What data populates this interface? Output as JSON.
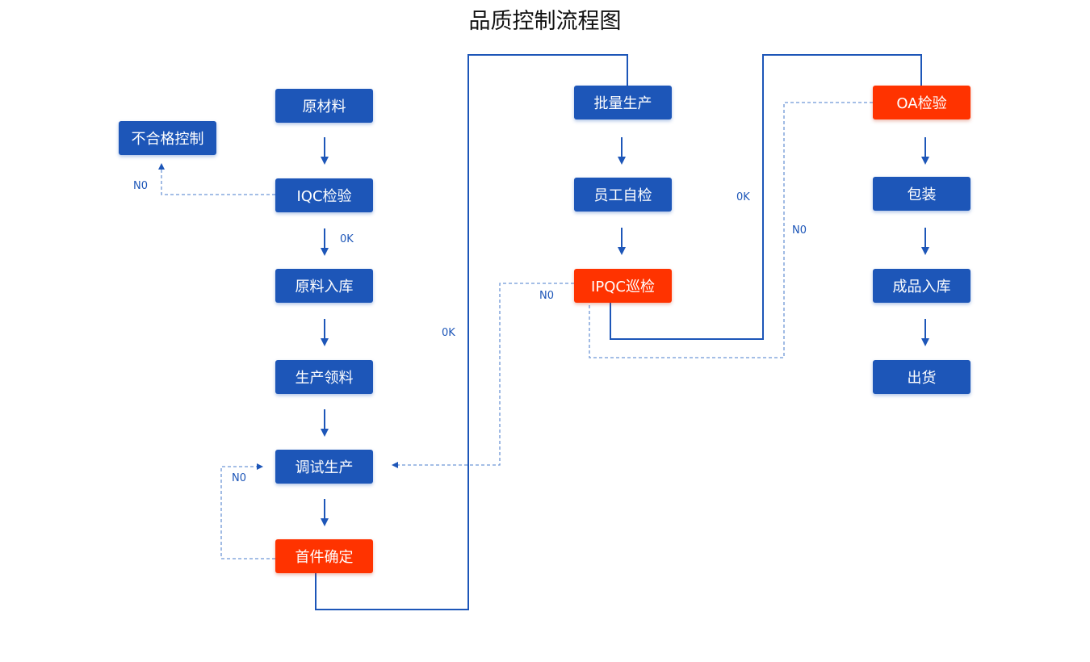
{
  "title": "品质控制流程图",
  "colors": {
    "node_blue": "#1d56b8",
    "node_red": "#ff3300",
    "line": "#1d56b8",
    "dashed_line": "#6e96d6"
  },
  "nodes": {
    "raw_material": "原材料",
    "nonconforming": "不合格控制",
    "iqc": "IQC检验",
    "raw_storage": "原料入库",
    "material_issue": "生产领料",
    "trial_production": "调试生产",
    "first_article": "首件确定",
    "mass_production": "批量生产",
    "self_check": "员工自检",
    "ipqc": "IPQC巡检",
    "oa": "OA检验",
    "packaging": "包装",
    "fg_storage": "成品入库",
    "shipping": "出货"
  },
  "edge_labels": {
    "iqc_no": "N0",
    "iqc_ok": "0K",
    "first_article_no": "N0",
    "first_article_ok": "0K",
    "ipqc_no": "N0",
    "ipqc_ok": "0K",
    "oa_no": "N0"
  }
}
